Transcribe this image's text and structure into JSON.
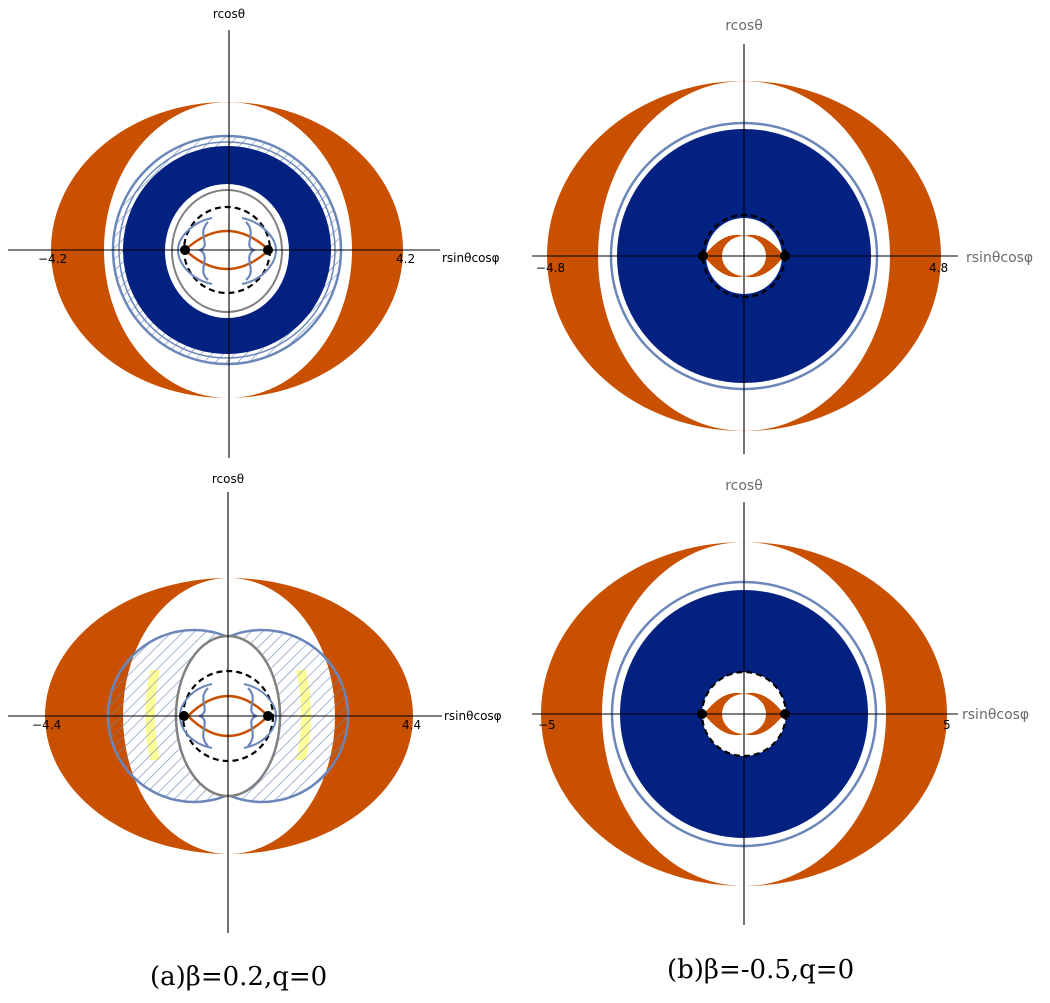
{
  "colors": {
    "orange": "#c85000",
    "navy": "#022180",
    "ring_blue": "#6b87b9",
    "gray": "#808080",
    "yellow": "#ffff99",
    "black": "#000000"
  },
  "panels": [
    {
      "id": "a-top",
      "y_axis_label": "rcosθ",
      "x_axis_label": "rsinθcosφ",
      "tick_neg": "−4.2",
      "tick_pos": "4.2"
    },
    {
      "id": "b-top",
      "y_axis_label": "rcosθ",
      "x_axis_label": "rsinθcosφ",
      "tick_neg": "−4.8",
      "tick_pos": "4.8"
    },
    {
      "id": "a-bottom",
      "y_axis_label": "rcosθ",
      "x_axis_label": "rsinθcosφ",
      "tick_neg": "−4.4",
      "tick_pos": "4.4"
    },
    {
      "id": "b-bottom",
      "y_axis_label": "rcosθ",
      "x_axis_label": "rsinθcosφ",
      "tick_neg": "−5",
      "tick_pos": "5"
    }
  ],
  "captions": {
    "a": "(a)β=0.2,q=0",
    "b": "(b)β=-0.5,q=0"
  }
}
